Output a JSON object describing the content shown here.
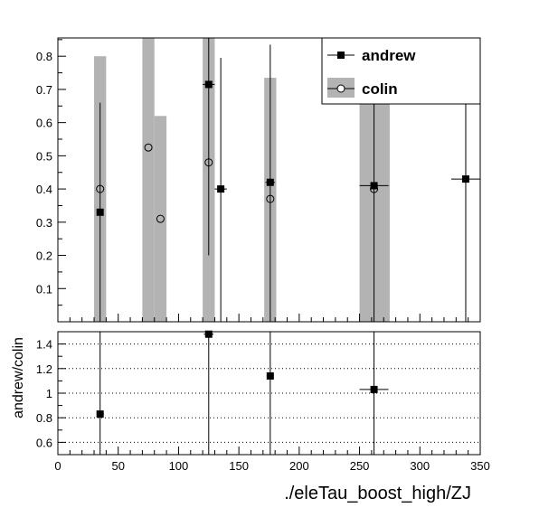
{
  "chart_data": [
    {
      "type": "scatter",
      "title": "",
      "xlabel": "",
      "ylabel": "",
      "xlim": [
        0,
        350
      ],
      "ylim": [
        0,
        0.855
      ],
      "xticks": [
        0,
        50,
        100,
        150,
        200,
        250,
        300,
        350
      ],
      "yticks": [
        0.1,
        0.2,
        0.3,
        0.4,
        0.5,
        0.6,
        0.7,
        0.8
      ],
      "ytick_labels": [
        "0.1",
        "0.2",
        "0.3",
        "0.4",
        "0.5",
        "0.6",
        "0.7",
        "0.8"
      ],
      "legend": {
        "position": "top-right",
        "entries": [
          {
            "label": "andrew",
            "marker": "filled-square"
          },
          {
            "label": "colin",
            "marker": "open-circle",
            "band": "gray"
          }
        ]
      },
      "series": [
        {
          "name": "andrew",
          "marker": "filled-square",
          "color": "#000000",
          "points": [
            {
              "x": 35,
              "y": 0.33,
              "xerr": 2,
              "ylo": 0.0,
              "yhi": 0.66
            },
            {
              "x": 125,
              "y": 0.715,
              "xerr": 5,
              "ylo": 0.2,
              "yhi": 0.855
            },
            {
              "x": 135,
              "y": 0.4,
              "xerr": 5,
              "ylo": 0.0,
              "yhi": 0.795
            },
            {
              "x": 176,
              "y": 0.42,
              "xerr": 4,
              "ylo": 0.0,
              "yhi": 0.835
            },
            {
              "x": 262,
              "y": 0.41,
              "xerr": 12,
              "ylo": 0.0,
              "yhi": 0.855
            },
            {
              "x": 338,
              "y": 0.43,
              "xerr": 12,
              "ylo": 0.0,
              "yhi": 0.855
            }
          ]
        },
        {
          "name": "colin",
          "marker": "open-circle",
          "color": "#000000",
          "band_color": "#b3b3b3",
          "points": [
            {
              "x": 35,
              "y": 0.4
            },
            {
              "x": 75,
              "y": 0.525
            },
            {
              "x": 85,
              "y": 0.31
            },
            {
              "x": 125,
              "y": 0.48
            },
            {
              "x": 176,
              "y": 0.37
            },
            {
              "x": 262,
              "y": 0.4
            }
          ],
          "bands": [
            {
              "x0": 30,
              "x1": 40,
              "y0": 0.0,
              "y1": 0.8
            },
            {
              "x0": 70,
              "x1": 80,
              "y0": 0.0,
              "y1": 0.855
            },
            {
              "x0": 80,
              "x1": 90,
              "y0": 0.0,
              "y1": 0.62
            },
            {
              "x0": 120,
              "x1": 130,
              "y0": 0.0,
              "y1": 0.855
            },
            {
              "x0": 171,
              "x1": 181,
              "y0": 0.0,
              "y1": 0.735
            },
            {
              "x0": 250,
              "x1": 275,
              "y0": 0.0,
              "y1": 0.855
            }
          ]
        }
      ]
    },
    {
      "type": "scatter",
      "title": "",
      "xlabel": "./eleTau_boost_high/ZJ",
      "ylabel": "andrew/colin",
      "xlim": [
        0,
        350
      ],
      "ylim": [
        0.5,
        1.5
      ],
      "xticks": [
        0,
        50,
        100,
        150,
        200,
        250,
        300,
        350
      ],
      "xtick_labels": [
        "0",
        "50",
        "100",
        "150",
        "200",
        "250",
        "300",
        "350"
      ],
      "yticks": [
        0.6,
        0.8,
        1.0,
        1.2,
        1.4
      ],
      "ytick_labels": [
        "0.6",
        "0.8",
        "1",
        "1.2",
        "1.4"
      ],
      "grid": {
        "y": "dotted"
      },
      "series": [
        {
          "name": "andrew/colin",
          "marker": "filled-square",
          "color": "#000000",
          "points": [
            {
              "x": 35,
              "y": 0.83,
              "xerr": 3,
              "ylo": 0.5,
              "yhi": 1.5
            },
            {
              "x": 125,
              "y": 1.48,
              "xerr": 4,
              "ylo": 0.5,
              "yhi": 1.5
            },
            {
              "x": 176,
              "y": 1.14,
              "xerr": 3,
              "ylo": 0.5,
              "yhi": 1.5
            },
            {
              "x": 262,
              "y": 1.03,
              "xerr": 12,
              "ylo": 0.5,
              "yhi": 1.5
            }
          ]
        }
      ]
    }
  ]
}
